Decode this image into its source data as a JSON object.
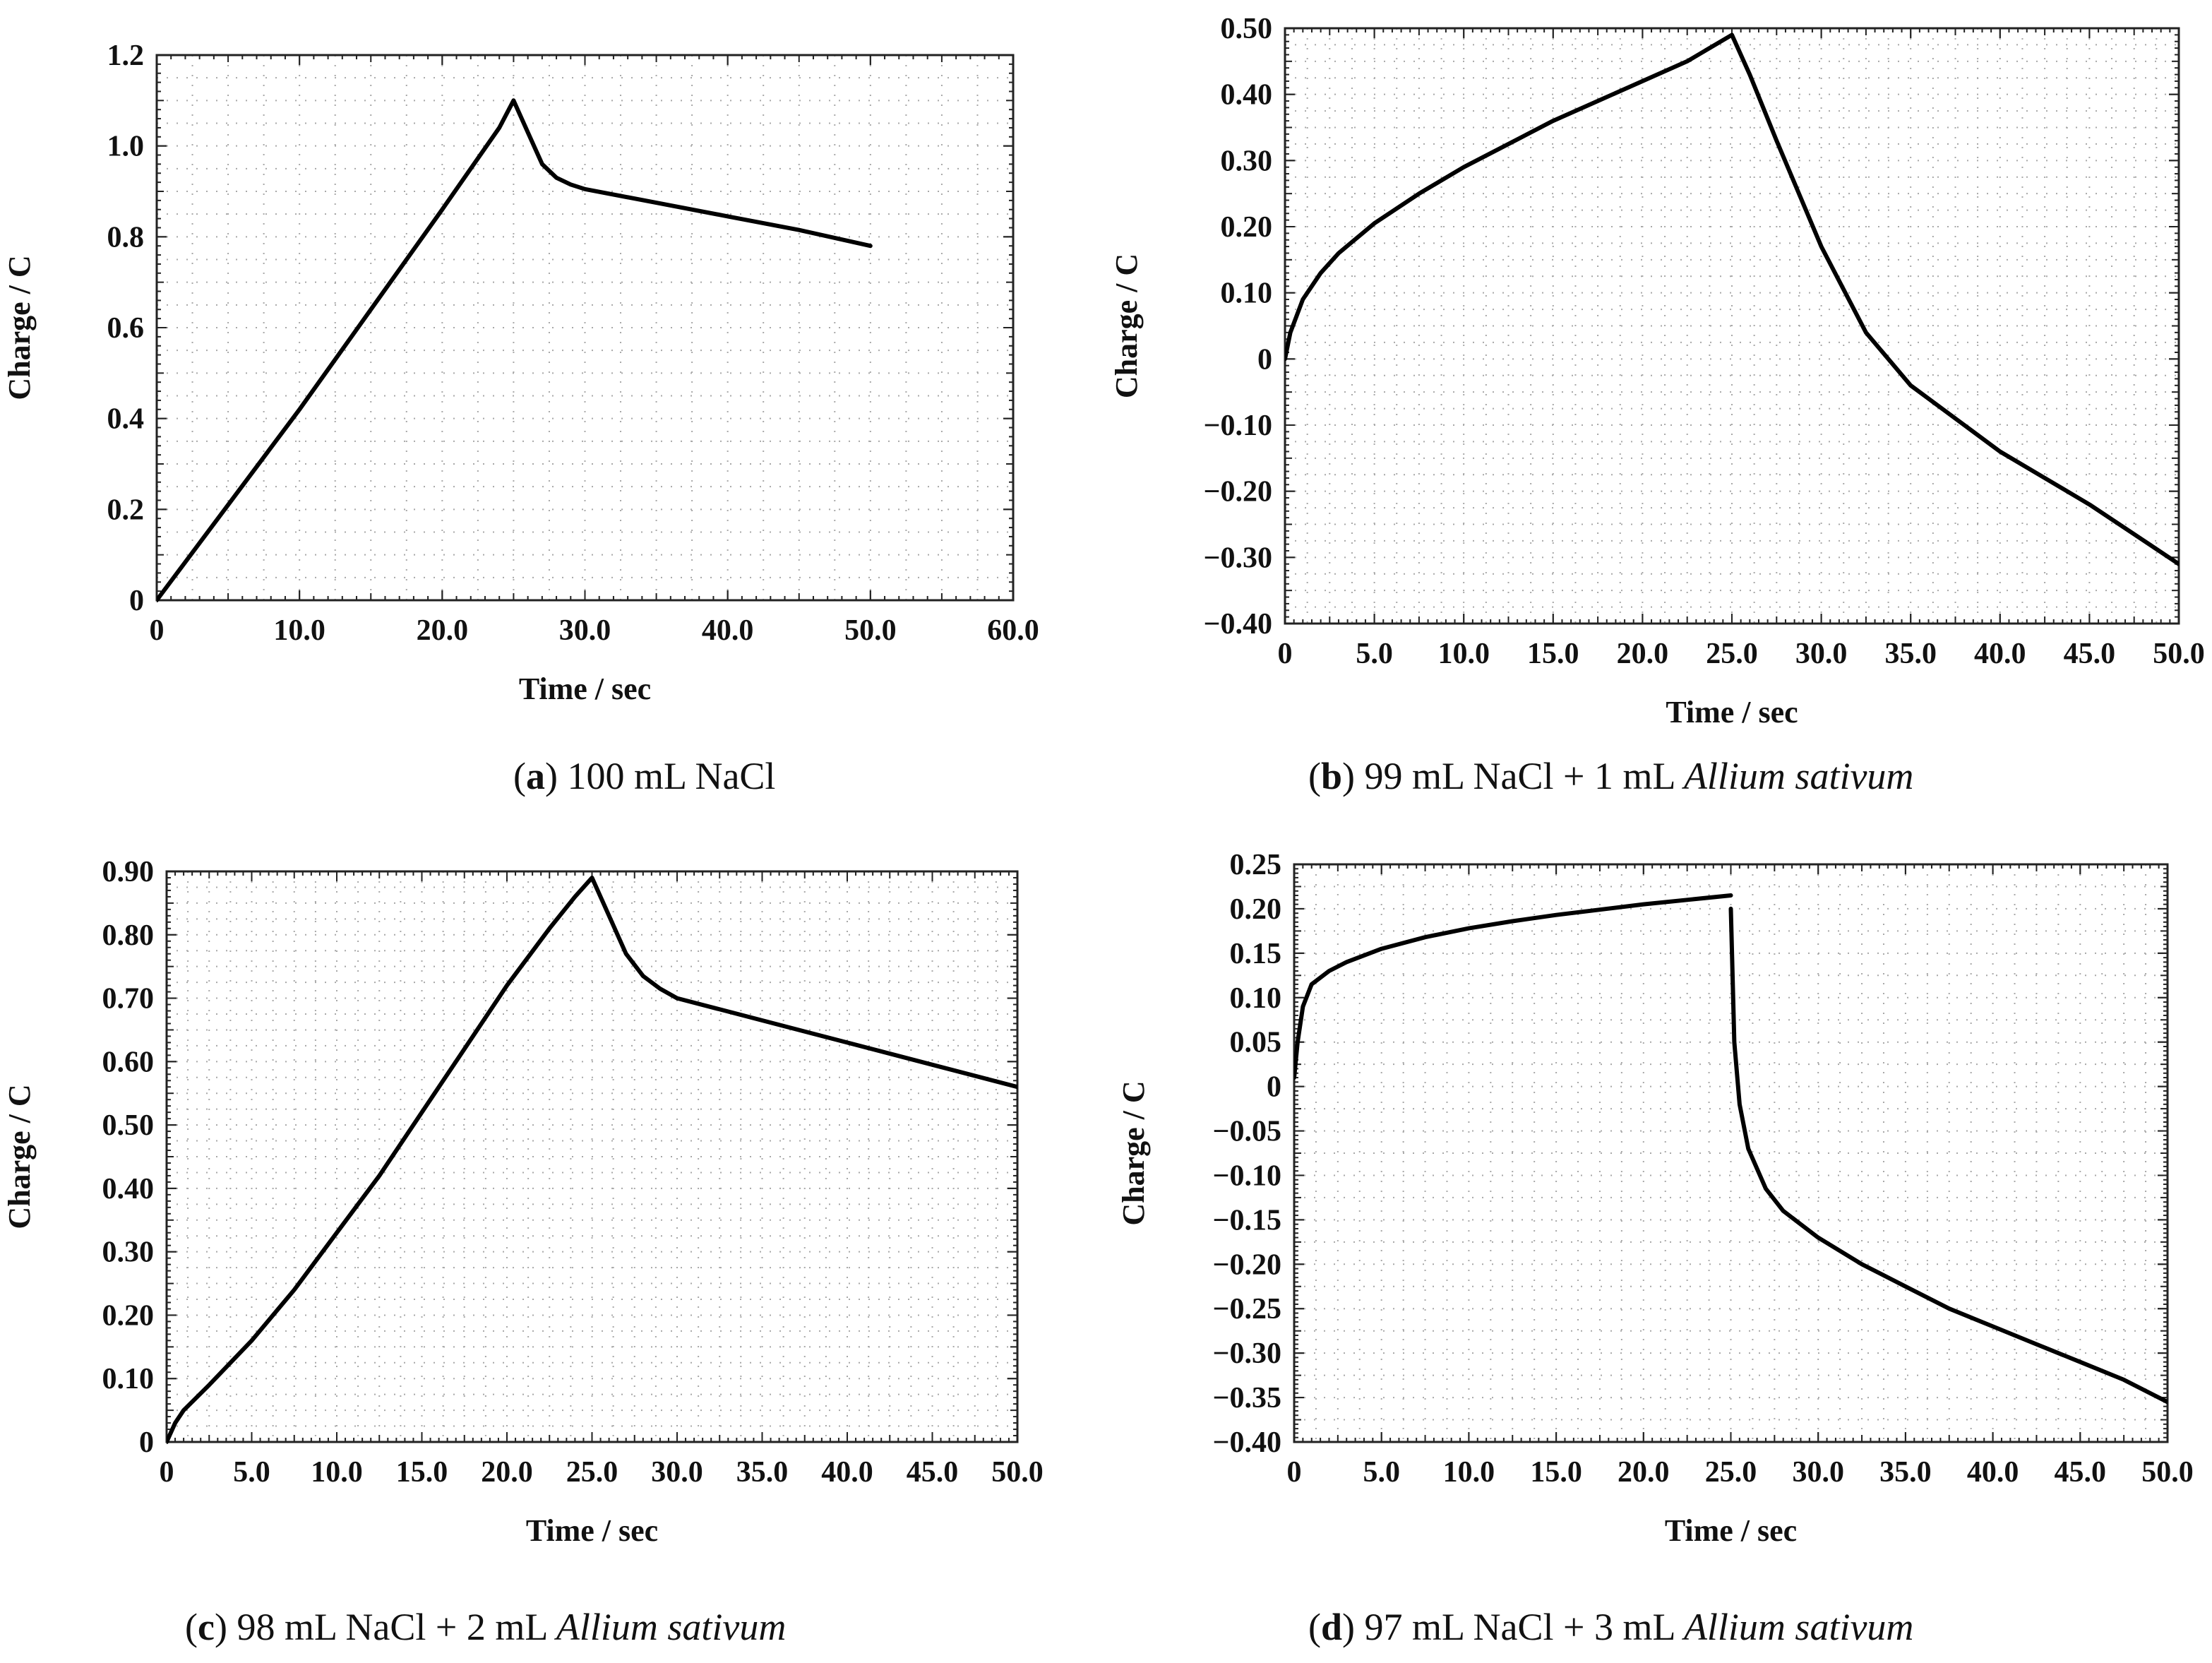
{
  "chart_data": [
    {
      "id": "a",
      "type": "line",
      "xlabel": "Time / sec",
      "ylabel": "Charge / C",
      "xlim": [
        0,
        60
      ],
      "ylim": [
        0,
        1.2
      ],
      "xticks": [
        0,
        10,
        20,
        30,
        40,
        50,
        60
      ],
      "xtick_labels": [
        "0",
        "10.0",
        "20.0",
        "30.0",
        "40.0",
        "50.0",
        "60.0"
      ],
      "yticks": [
        0,
        0.2,
        0.4,
        0.6,
        0.8,
        1.0,
        1.2
      ],
      "ytick_labels": [
        "0",
        "0.2",
        "0.4",
        "0.6",
        "0.8",
        "1.0",
        "1.2"
      ],
      "caption": {
        "letter": "a",
        "text": " 100 mL NaCl",
        "italic": ""
      },
      "series": [
        {
          "name": "charge",
          "x": [
            0,
            5,
            10,
            15,
            20,
            24,
            25,
            26,
            27,
            28,
            29,
            30,
            35,
            40,
            45,
            50
          ],
          "y": [
            0,
            0.21,
            0.42,
            0.64,
            0.86,
            1.04,
            1.1,
            1.03,
            0.96,
            0.93,
            0.915,
            0.905,
            0.875,
            0.845,
            0.815,
            0.78
          ]
        }
      ]
    },
    {
      "id": "b",
      "type": "line",
      "xlabel": "Time / sec",
      "ylabel": "Charge / C",
      "xlim": [
        0,
        50
      ],
      "ylim": [
        -0.4,
        0.5
      ],
      "xticks": [
        0,
        5,
        10,
        15,
        20,
        25,
        30,
        35,
        40,
        45,
        50
      ],
      "xtick_labels": [
        "0",
        "5.0",
        "10.0",
        "15.0",
        "20.0",
        "25.0",
        "30.0",
        "35.0",
        "40.0",
        "45.0",
        "50.0"
      ],
      "yticks": [
        -0.4,
        -0.3,
        -0.2,
        -0.1,
        0,
        0.1,
        0.2,
        0.3,
        0.4,
        0.5
      ],
      "ytick_labels": [
        "−0.40",
        "−0.30",
        "−0.20",
        "−0.10",
        "0",
        "0.10",
        "0.20",
        "0.30",
        "0.40",
        "0.50"
      ],
      "caption": {
        "letter": "b",
        "text": " 99 mL NaCl + 1 mL ",
        "italic": "Allium sativum"
      },
      "series": [
        {
          "name": "charge",
          "x": [
            0,
            0.3,
            1,
            2,
            3,
            5,
            7.5,
            10,
            12.5,
            15,
            17.5,
            20,
            22.5,
            25,
            26,
            27.5,
            30,
            32.5,
            35,
            37.5,
            40,
            42.5,
            45,
            47.5,
            50
          ],
          "y": [
            0,
            0.04,
            0.09,
            0.13,
            0.16,
            0.205,
            0.25,
            0.29,
            0.325,
            0.36,
            0.39,
            0.42,
            0.45,
            0.49,
            0.43,
            0.33,
            0.17,
            0.04,
            -0.04,
            -0.09,
            -0.14,
            -0.18,
            -0.22,
            -0.265,
            -0.31
          ]
        }
      ]
    },
    {
      "id": "c",
      "type": "line",
      "xlabel": "Time / sec",
      "ylabel": "Charge / C",
      "xlim": [
        0,
        50
      ],
      "ylim": [
        0,
        0.9
      ],
      "xticks": [
        0,
        5,
        10,
        15,
        20,
        25,
        30,
        35,
        40,
        45,
        50
      ],
      "xtick_labels": [
        "0",
        "5.0",
        "10.0",
        "15.0",
        "20.0",
        "25.0",
        "30.0",
        "35.0",
        "40.0",
        "45.0",
        "50.0"
      ],
      "yticks": [
        0,
        0.1,
        0.2,
        0.3,
        0.4,
        0.5,
        0.6,
        0.7,
        0.8,
        0.9
      ],
      "ytick_labels": [
        "0",
        "0.10",
        "0.20",
        "0.30",
        "0.40",
        "0.50",
        "0.60",
        "0.70",
        "0.80",
        "0.90"
      ],
      "caption": {
        "letter": "c",
        "text": " 98 mL NaCl + 2 mL ",
        "italic": "Allium sativum"
      },
      "series": [
        {
          "name": "charge",
          "x": [
            0,
            0.5,
            1,
            2.5,
            5,
            7.5,
            10,
            12.5,
            15,
            17.5,
            20,
            22.5,
            24,
            25,
            26,
            27,
            28,
            29,
            30,
            35,
            40,
            45,
            50
          ],
          "y": [
            0,
            0.03,
            0.05,
            0.09,
            0.16,
            0.24,
            0.33,
            0.42,
            0.52,
            0.62,
            0.72,
            0.81,
            0.86,
            0.89,
            0.83,
            0.77,
            0.735,
            0.715,
            0.7,
            0.665,
            0.63,
            0.595,
            0.56
          ]
        }
      ]
    },
    {
      "id": "d",
      "type": "line",
      "xlabel": "Time / sec",
      "ylabel": "Charge / C",
      "xlim": [
        0,
        50
      ],
      "ylim": [
        -0.4,
        0.25
      ],
      "xticks": [
        0,
        5,
        10,
        15,
        20,
        25,
        30,
        35,
        40,
        45,
        50
      ],
      "xtick_labels": [
        "0",
        "5.0",
        "10.0",
        "15.0",
        "20.0",
        "25.0",
        "30.0",
        "35.0",
        "40.0",
        "45.0",
        "50.0"
      ],
      "yticks": [
        -0.4,
        -0.35,
        -0.3,
        -0.25,
        -0.2,
        -0.15,
        -0.1,
        -0.05,
        0,
        0.05,
        0.1,
        0.15,
        0.2,
        0.25
      ],
      "ytick_labels": [
        "−0.40",
        "−0.35",
        "−0.30",
        "−0.25",
        "−0.20",
        "−0.15",
        "−0.10",
        "−0.05",
        "0",
        "0.05",
        "0.10",
        "0.15",
        "0.20",
        "0.25"
      ],
      "caption": {
        "letter": "d",
        "text": " 97 mL NaCl + 3 mL ",
        "italic": "Allium sativum"
      },
      "series": [
        {
          "name": "charge-segment-1",
          "x": [
            0,
            0.2,
            0.5,
            1,
            2,
            3,
            5,
            7.5,
            10,
            12.5,
            15,
            17.5,
            20,
            22.5,
            25
          ],
          "y": [
            0.01,
            0.05,
            0.09,
            0.115,
            0.13,
            0.14,
            0.155,
            0.168,
            0.178,
            0.186,
            0.193,
            0.199,
            0.205,
            0.21,
            0.215
          ]
        },
        {
          "name": "charge-segment-2",
          "x": [
            25,
            25.2,
            25.5,
            26,
            27,
            28,
            29,
            30,
            32.5,
            35,
            37.5,
            40,
            42.5,
            45,
            47.5,
            50
          ],
          "y": [
            0.2,
            0.05,
            -0.02,
            -0.07,
            -0.115,
            -0.14,
            -0.155,
            -0.17,
            -0.2,
            -0.225,
            -0.25,
            -0.27,
            -0.29,
            -0.31,
            -0.33,
            -0.355
          ]
        }
      ]
    }
  ]
}
